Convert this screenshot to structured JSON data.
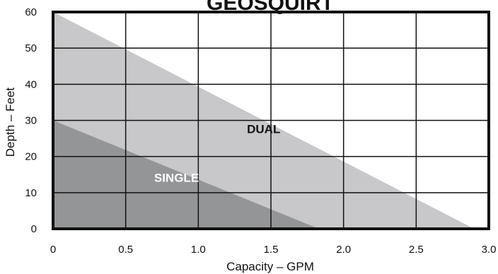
{
  "chart_data": {
    "type": "area",
    "title": "GEOSQUIRT",
    "xlabel": "Capacity – GPM",
    "ylabel": "Depth – Feet",
    "xlim": [
      0,
      3.0
    ],
    "ylim": [
      0,
      60
    ],
    "xticks": [
      "0",
      "0.5",
      "1.0",
      "1.5",
      "2.0",
      "2.5",
      "3.0"
    ],
    "yticks": [
      "0",
      "10",
      "20",
      "30",
      "40",
      "50",
      "60"
    ],
    "grid": true,
    "series": [
      {
        "name": "DUAL",
        "color": "#c8c8ca",
        "label_color": "#111111",
        "points": [
          [
            0,
            60
          ],
          [
            2.9,
            0
          ]
        ],
        "label_at": [
          1.45,
          26.5
        ]
      },
      {
        "name": "SINGLE",
        "color": "#949597",
        "label_color": "#ffffff",
        "points": [
          [
            0,
            30
          ],
          [
            1.83,
            0
          ]
        ],
        "label_at": [
          0.85,
          13
        ]
      }
    ]
  }
}
